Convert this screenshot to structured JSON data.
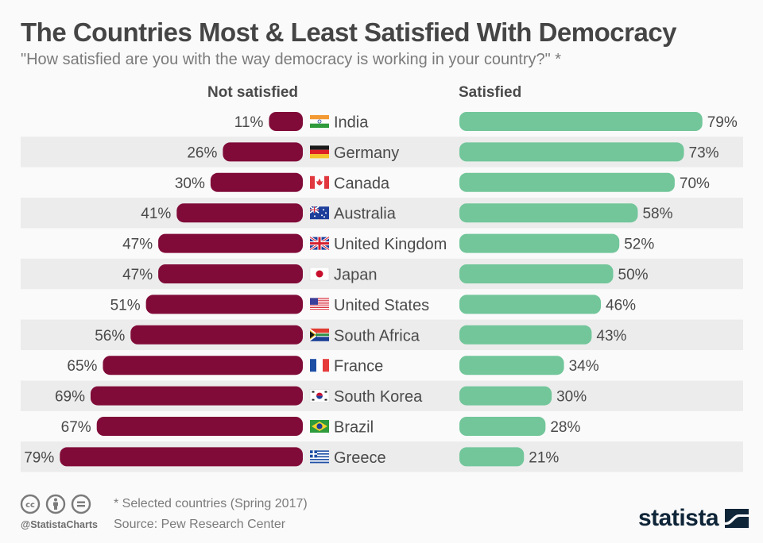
{
  "header": {
    "title": "The Countries Most & Least Satisfied With Democracy",
    "subtitle": "\"How satisfied are you with the way democracy is working in your country?\" *"
  },
  "chart_data": {
    "type": "bar",
    "orientation": "horizontal-diverging",
    "title": "The Countries Most & Least Satisfied With Democracy",
    "subtitle": "\"How satisfied are you with the way democracy is working in your country?\" *",
    "categories": [
      "India",
      "Germany",
      "Canada",
      "Australia",
      "United Kingdom",
      "Japan",
      "United States",
      "South Africa",
      "France",
      "South Korea",
      "Brazil",
      "Greece"
    ],
    "series": [
      {
        "name": "Not satisfied",
        "color": "#800b38",
        "side": "left",
        "values": [
          11,
          26,
          30,
          41,
          47,
          47,
          51,
          56,
          65,
          69,
          67,
          79
        ]
      },
      {
        "name": "Satisfied",
        "color": "#72c69a",
        "side": "right",
        "values": [
          79,
          73,
          70,
          58,
          52,
          50,
          46,
          43,
          34,
          30,
          28,
          21
        ]
      }
    ],
    "value_suffix": "%",
    "xlim": [
      0,
      80
    ],
    "grid": false,
    "legend": "column-headers-top",
    "flags": [
      "india-flag",
      "germany-flag",
      "canada-flag",
      "australia-flag",
      "uk-flag",
      "japan-flag",
      "usa-flag",
      "south-africa-flag",
      "france-flag",
      "south-korea-flag",
      "brazil-flag",
      "greece-flag"
    ]
  },
  "footer": {
    "note": "* Selected countries (Spring 2017)",
    "source": "Source: Pew Research Center",
    "handle": "@StatistaCharts",
    "license_icons": [
      "cc-icon",
      "attribution-icon",
      "no-derivatives-icon"
    ],
    "brand": "statista"
  }
}
